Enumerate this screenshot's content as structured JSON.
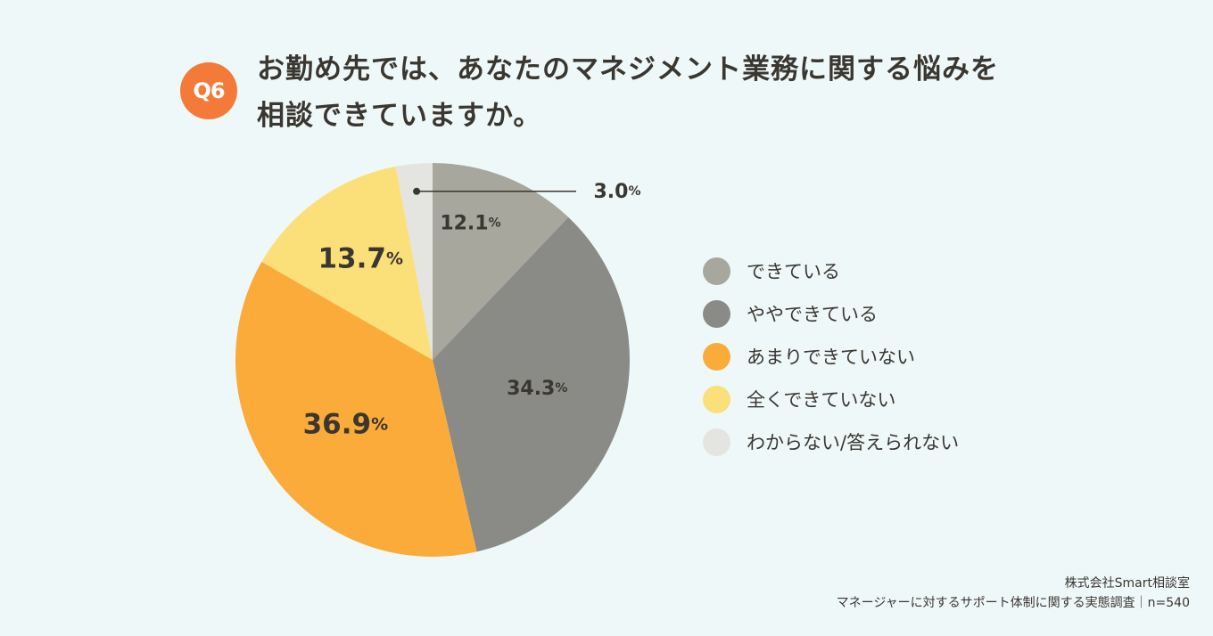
{
  "badge": "Q6",
  "title": {
    "line1": "お勤め先では、あなたのマネジメント業務に関する悩みを",
    "line2": "相談できていますか。"
  },
  "chart_data": {
    "type": "pie",
    "categories": [
      "できている",
      "ややできている",
      "あまりできていない",
      "全くできていない",
      "わからない/答えられない"
    ],
    "values": [
      12.1,
      34.3,
      36.9,
      13.7,
      3.0
    ],
    "labels": [
      "12.1",
      "34.3",
      "36.9",
      "13.7",
      "3.0"
    ],
    "unit": "%",
    "colors": [
      "#a7a79d",
      "#8a8b86",
      "#fbab39",
      "#fbdf79",
      "#e4e4e1"
    ],
    "legend_position": "right"
  },
  "source": {
    "line1": "株式会社Smart相談室",
    "line2": "マネージャーに対するサポート体制に関する実態調査｜n=540"
  }
}
